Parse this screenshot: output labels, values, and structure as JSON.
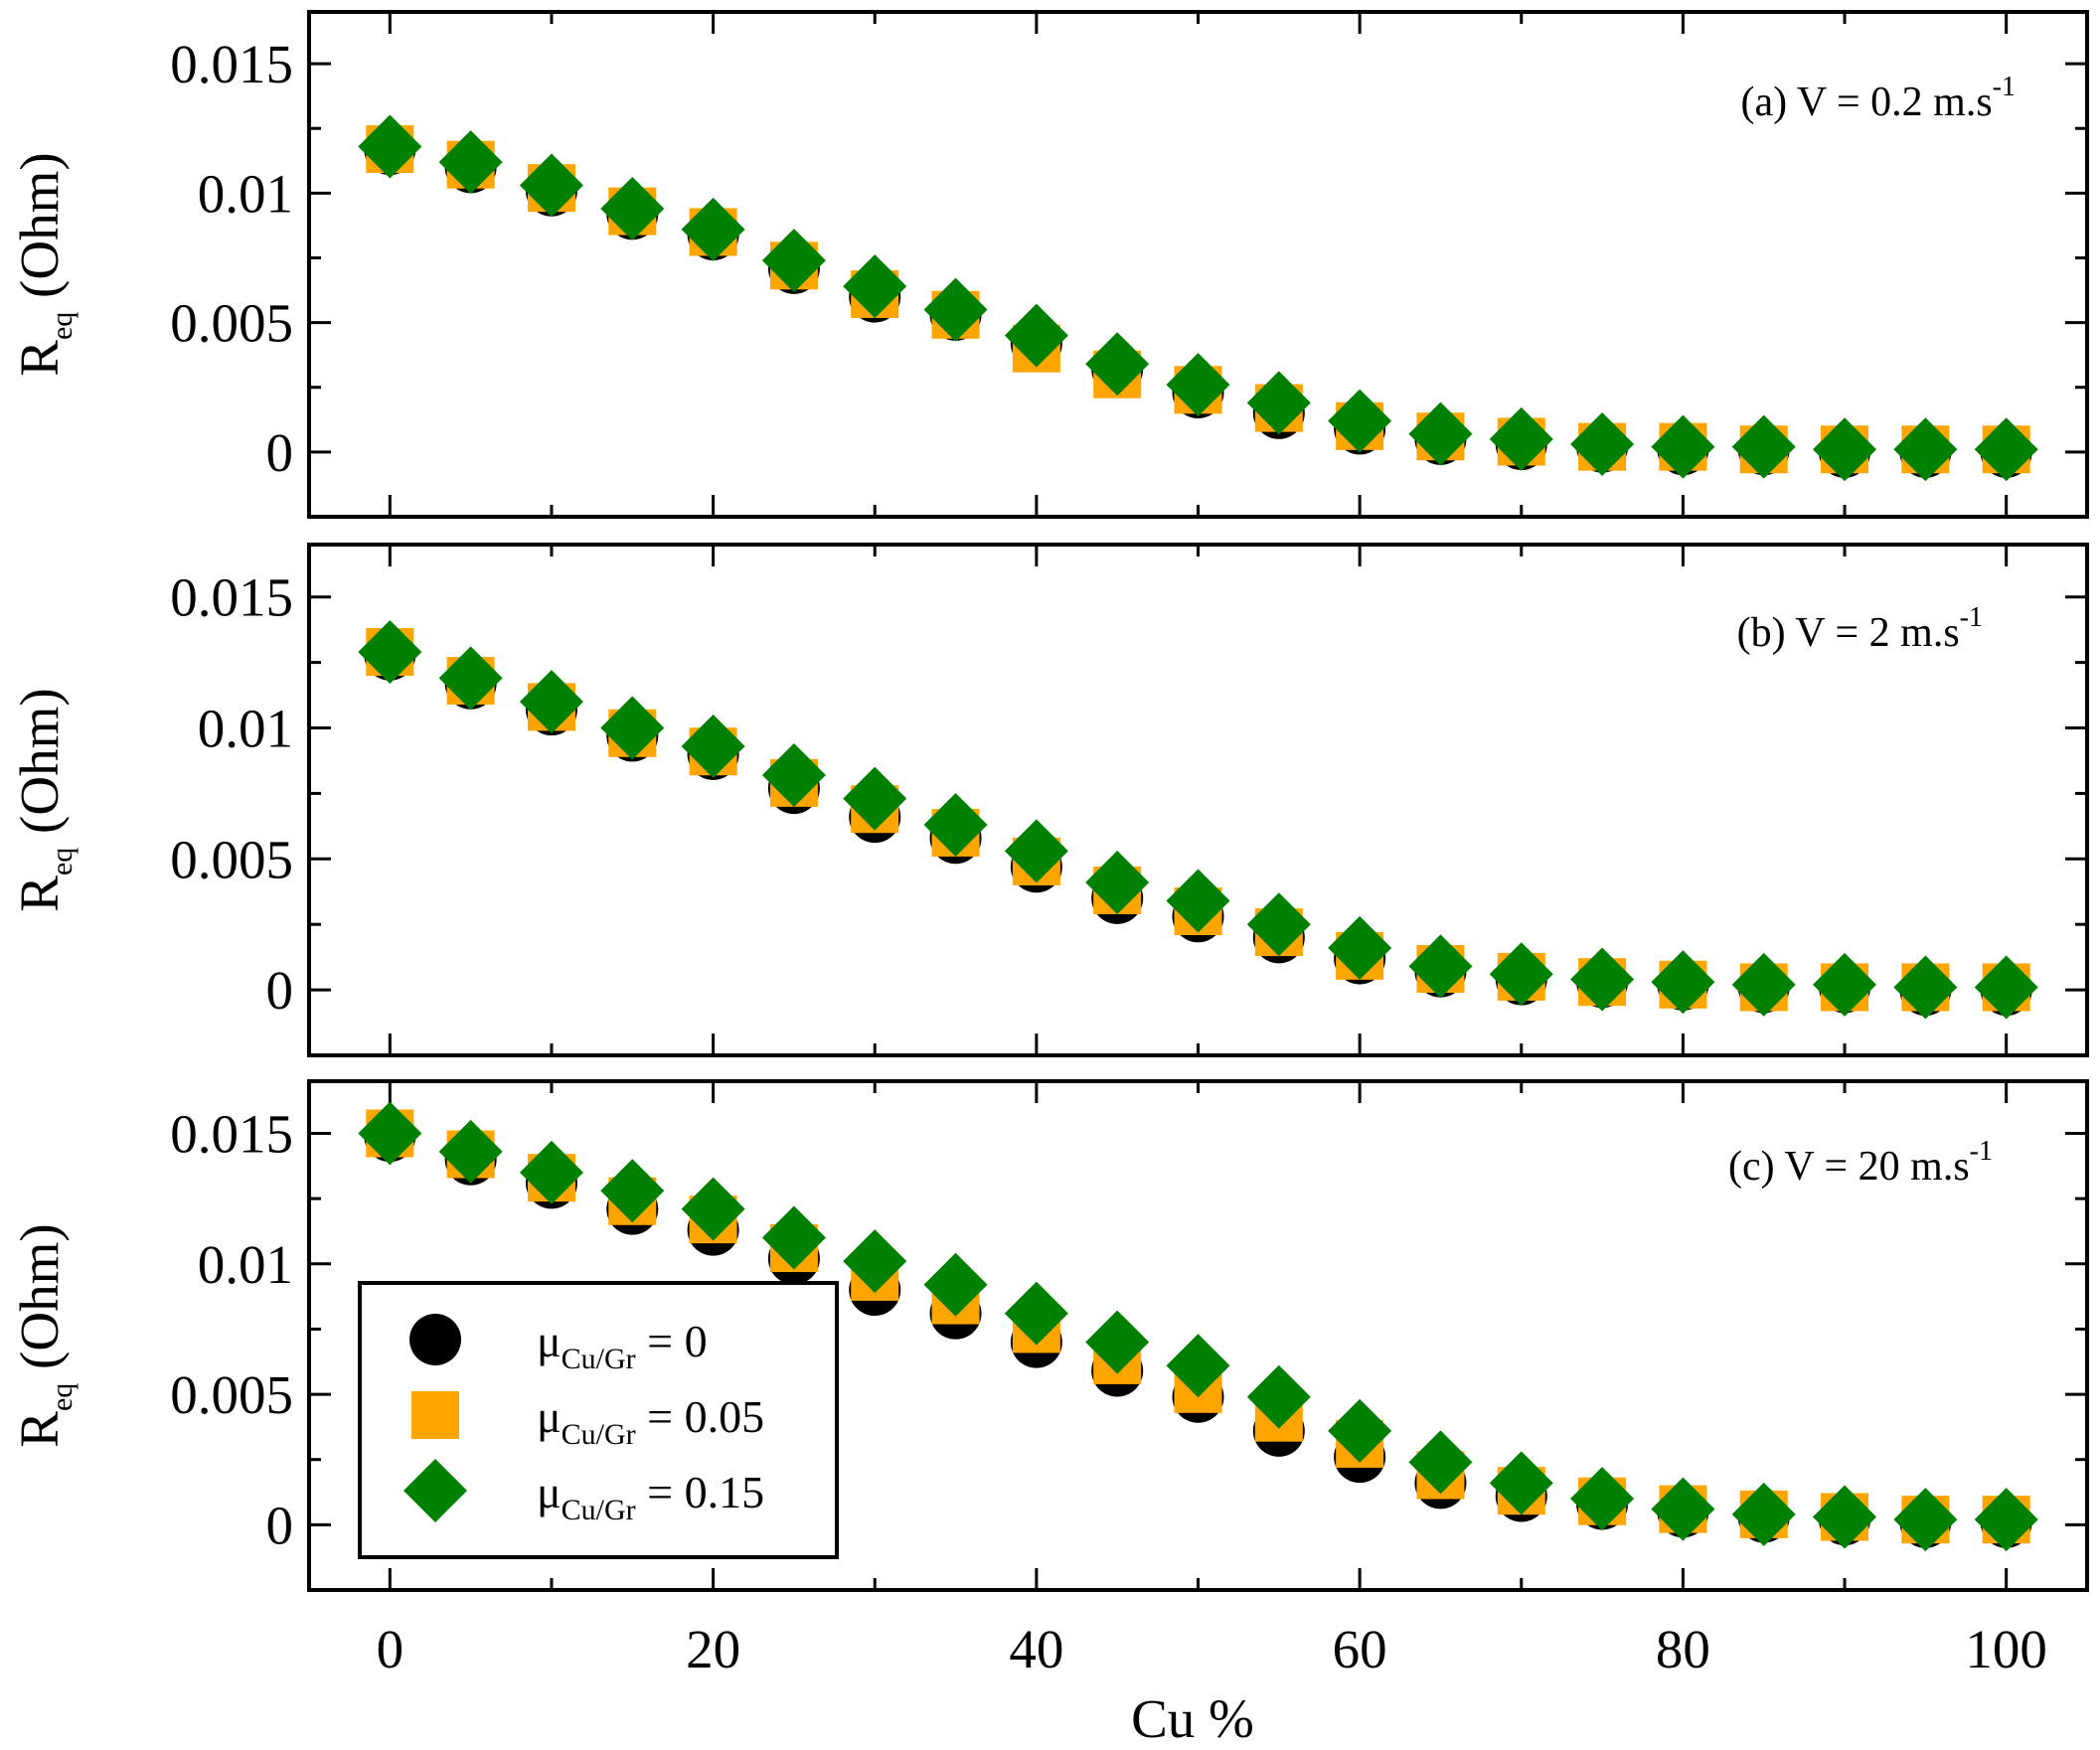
{
  "chart_data": {
    "type": "scatter",
    "x": [
      0,
      5,
      10,
      15,
      20,
      25,
      30,
      35,
      40,
      45,
      50,
      55,
      60,
      65,
      70,
      75,
      80,
      85,
      90,
      95,
      100
    ],
    "xlabel": "Cu %",
    "x_ticks": [
      "0",
      "20",
      "40",
      "60",
      "80",
      "100"
    ],
    "xlim": [
      -5,
      105
    ],
    "ylabel_main": "R",
    "ylabel_sub": "eq",
    "ylabel_unit": "(Ohm)",
    "y_ticks": [
      "0",
      "0.005",
      "0.01",
      "0.015"
    ],
    "ylim": [
      -0.0025,
      0.017
    ],
    "legend": {
      "location": "lower-left",
      "symbol": "μ",
      "sub": "Cu/Gr",
      "entries": [
        {
          "series": 0,
          "label_value": "= 0"
        },
        {
          "series": 1,
          "label_value": "= 0.05"
        },
        {
          "series": 2,
          "label_value": "= 0.15"
        }
      ]
    },
    "series_styles": [
      {
        "name": "μCu/Gr = 0",
        "marker": "circle",
        "color": "#000000"
      },
      {
        "name": "μCu/Gr = 0.05",
        "marker": "square",
        "color": "#FFA500"
      },
      {
        "name": "μCu/Gr = 0.15",
        "marker": "diamond",
        "color": "#008000"
      }
    ],
    "panels": [
      {
        "label_prefix": "(a) V = 0.2 m.s",
        "label_sup": "-1",
        "series": [
          {
            "name": "μCu/Gr = 0",
            "values": [
              0.0117,
              0.011,
              0.0101,
              0.0092,
              0.0084,
              0.0071,
              0.006,
              0.0053,
              0.0042,
              0.0032,
              0.0023,
              0.0015,
              0.0009,
              0.0005,
              0.0003,
              0.0002,
              0.0001,
              0.0001,
              0.0,
              0.0,
              0.0
            ]
          },
          {
            "name": "μCu/Gr = 0.05",
            "values": [
              0.0117,
              0.0111,
              0.0102,
              0.0093,
              0.0085,
              0.0072,
              0.0061,
              0.0053,
              0.004,
              0.003,
              0.0024,
              0.0017,
              0.001,
              0.0006,
              0.0004,
              0.0002,
              0.0002,
              0.0001,
              0.0001,
              0.0001,
              0.0001
            ]
          },
          {
            "name": "μCu/Gr = 0.15",
            "values": [
              0.0118,
              0.0112,
              0.0103,
              0.0094,
              0.0086,
              0.0074,
              0.0064,
              0.0055,
              0.0045,
              0.0034,
              0.0026,
              0.0019,
              0.0012,
              0.0007,
              0.0005,
              0.0003,
              0.0002,
              0.0002,
              0.0001,
              0.0001,
              0.0001
            ]
          }
        ]
      },
      {
        "label_prefix": "(b) V = 2 m.s",
        "label_sup": "-1",
        "series": [
          {
            "name": "μCu/Gr = 0",
            "values": [
              0.0128,
              0.0117,
              0.0107,
              0.0097,
              0.009,
              0.0077,
              0.0066,
              0.0058,
              0.0047,
              0.0035,
              0.0028,
              0.002,
              0.0012,
              0.0007,
              0.0004,
              0.0003,
              0.0002,
              0.0001,
              0.0001,
              0.0,
              0.0
            ]
          },
          {
            "name": "μCu/Gr = 0.05",
            "values": [
              0.0129,
              0.0118,
              0.0108,
              0.0098,
              0.0091,
              0.0079,
              0.0069,
              0.006,
              0.0049,
              0.0038,
              0.003,
              0.0022,
              0.0013,
              0.0008,
              0.0005,
              0.0003,
              0.0002,
              0.0001,
              0.0001,
              0.0001,
              0.0001
            ]
          },
          {
            "name": "μCu/Gr = 0.15",
            "values": [
              0.0129,
              0.0119,
              0.011,
              0.01,
              0.0093,
              0.0082,
              0.0073,
              0.0063,
              0.0053,
              0.0041,
              0.0034,
              0.0025,
              0.0016,
              0.0009,
              0.0006,
              0.0004,
              0.0003,
              0.0002,
              0.0002,
              0.0001,
              0.0001
            ]
          }
        ]
      },
      {
        "label_prefix": "(c) V = 20 m.s",
        "label_sup": "-1",
        "series": [
          {
            "name": "μCu/Gr = 0",
            "values": [
              0.0149,
              0.014,
              0.0131,
              0.0121,
              0.0113,
              0.0102,
              0.009,
              0.0081,
              0.007,
              0.0059,
              0.0049,
              0.0036,
              0.0026,
              0.0016,
              0.0011,
              0.0008,
              0.0005,
              0.0003,
              0.0002,
              0.0001,
              0.0001
            ]
          },
          {
            "name": "μCu/Gr = 0.05",
            "values": [
              0.015,
              0.0142,
              0.0133,
              0.0124,
              0.0117,
              0.0106,
              0.0095,
              0.0086,
              0.0075,
              0.0063,
              0.0052,
              0.0041,
              0.0031,
              0.0019,
              0.0013,
              0.0009,
              0.0006,
              0.0004,
              0.0003,
              0.0002,
              0.0002
            ]
          },
          {
            "name": "μCu/Gr = 0.15",
            "values": [
              0.015,
              0.0143,
              0.0135,
              0.0128,
              0.0121,
              0.011,
              0.0101,
              0.0092,
              0.0081,
              0.007,
              0.0061,
              0.0049,
              0.0036,
              0.0024,
              0.0016,
              0.001,
              0.0006,
              0.0004,
              0.0003,
              0.0002,
              0.0002
            ]
          }
        ]
      }
    ]
  }
}
